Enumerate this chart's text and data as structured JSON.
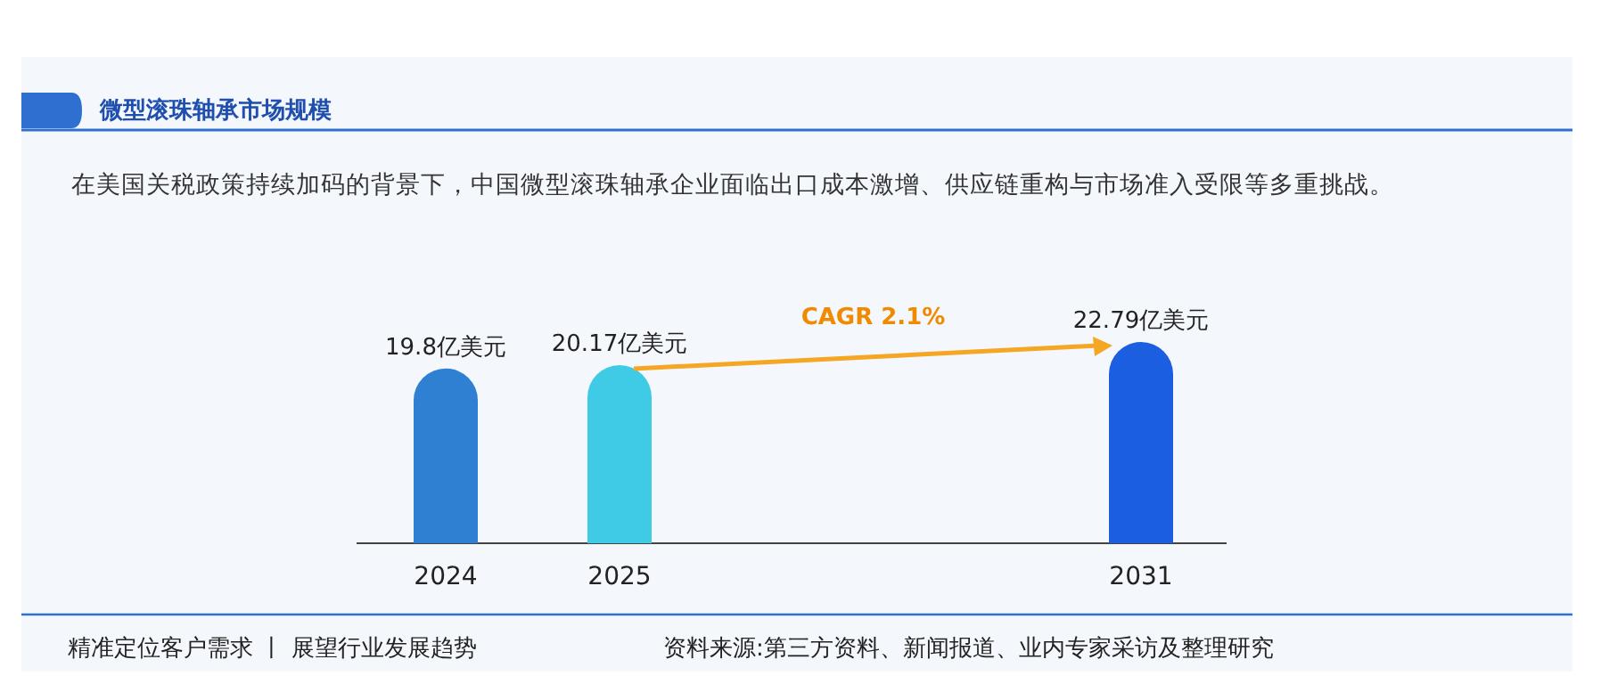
{
  "chart_data": {
    "type": "bar",
    "title": "微型滚珠轴承市场规模",
    "subtitle": "在美国关税政策持续加码的背景下，中国微型滚珠轴承企业面临出口成本激增、供应链重构与市场准入受限等多重挑战。",
    "categories": [
      "2024",
      "2025",
      null,
      null,
      "2031"
    ],
    "values": [
      19.8,
      20.17,
      null,
      null,
      22.79
    ],
    "colors": [
      "#2f80d3",
      "#3fcbe6",
      null,
      null,
      "#1b5fe0"
    ],
    "value_labels": [
      "19.8亿美元",
      "20.17亿美元",
      null,
      null,
      "22.79亿美元"
    ],
    "annotations": [
      "CAGR 2.1%",
      "精准定位客户需求 丨 展望行业发展趋势",
      "资料来源:第三方资料、新闻报道、业内专家采访及整理研究"
    ]
  }
}
